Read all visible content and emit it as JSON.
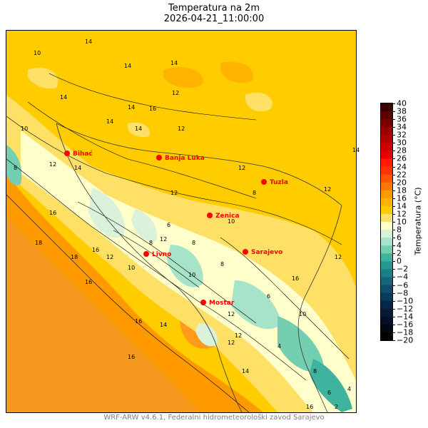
{
  "title": "Temperatura na 2m",
  "subtitle": "2026-04-21_11:00:00",
  "footer": "WRF-ARW v4.6.1, Federalni hidrometeorološki zavod Sarajevo",
  "colorbar": {
    "label": "Temperatura (°C)",
    "ticks": [
      "40",
      "38",
      "36",
      "34",
      "32",
      "30",
      "28",
      "26",
      "24",
      "22",
      "20",
      "18",
      "16",
      "14",
      "12",
      "10",
      "8",
      "6",
      "4",
      "2",
      "0",
      "−2",
      "−4",
      "−6",
      "−8",
      "−10",
      "−12",
      "−14",
      "−16",
      "−18",
      "−20"
    ],
    "colors": [
      "#3d0000",
      "#5c0000",
      "#7a0000",
      "#990000",
      "#b30000",
      "#cc0000",
      "#e60000",
      "#ff1a00",
      "#ff3300",
      "#ff5500",
      "#ff7700",
      "#ff9900",
      "#ffb300",
      "#ffcc00",
      "#ffe066",
      "#ffffcc",
      "#d9f2d9",
      "#a6e3c8",
      "#73cfb0",
      "#40b39e",
      "#26998f",
      "#1a7f86",
      "#14667a",
      "#0f4f6b",
      "#0a3a5c",
      "#06264a",
      "#041a38",
      "#020f26",
      "#010814",
      "#000000"
    ]
  },
  "cities": [
    {
      "name": "Bihać"
    },
    {
      "name": "Banja Luka"
    },
    {
      "name": "Tuzla"
    },
    {
      "name": "Zenica"
    },
    {
      "name": "Sarajevo"
    },
    {
      "name": "Livno"
    },
    {
      "name": "Mostar"
    }
  ],
  "contour_labels": [
    "10",
    "14",
    "14",
    "14",
    "12",
    "14",
    "14",
    "16",
    "14",
    "12",
    "10",
    "8",
    "12",
    "14",
    "16",
    "16",
    "18",
    "16",
    "12",
    "10",
    "8",
    "6",
    "8",
    "10",
    "12",
    "8",
    "6",
    "4",
    "12",
    "12",
    "14",
    "12",
    "10",
    "8",
    "12",
    "14",
    "16",
    "18",
    "16",
    "14",
    "12",
    "16",
    "12",
    "10",
    "8",
    "6",
    "4",
    "2",
    "16",
    "14",
    "12"
  ],
  "colors": {
    "land_base": "#ffcc00",
    "sea": "#ff9900",
    "city_marker": "#ff0000"
  }
}
